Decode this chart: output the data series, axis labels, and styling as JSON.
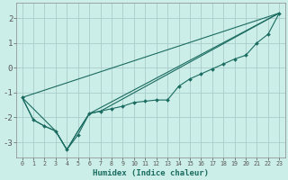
{
  "background_color": "#cceee8",
  "grid_color": "#aacccc",
  "line_color": "#1a6b60",
  "xlabel": "Humidex (Indice chaleur)",
  "xlim": [
    -0.5,
    23.5
  ],
  "ylim": [
    -3.6,
    2.6
  ],
  "yticks": [
    -3,
    -2,
    -1,
    0,
    1,
    2
  ],
  "xticks": [
    0,
    1,
    2,
    3,
    4,
    5,
    6,
    7,
    8,
    9,
    10,
    11,
    12,
    13,
    14,
    15,
    16,
    17,
    18,
    19,
    20,
    21,
    22,
    23
  ],
  "series_main": [
    [
      0,
      -1.2
    ],
    [
      1,
      -2.1
    ],
    [
      2,
      -2.35
    ],
    [
      3,
      -2.55
    ],
    [
      4,
      -3.3
    ],
    [
      5,
      -2.7
    ],
    [
      6,
      -1.85
    ],
    [
      7,
      -1.75
    ],
    [
      8,
      -1.65
    ],
    [
      9,
      -1.55
    ],
    [
      10,
      -1.4
    ],
    [
      11,
      -1.35
    ],
    [
      12,
      -1.3
    ],
    [
      13,
      -1.3
    ],
    [
      14,
      -0.75
    ],
    [
      15,
      -0.45
    ],
    [
      16,
      -0.25
    ],
    [
      17,
      -0.05
    ],
    [
      18,
      0.15
    ],
    [
      19,
      0.35
    ],
    [
      20,
      0.5
    ],
    [
      21,
      1.0
    ],
    [
      22,
      1.35
    ],
    [
      23,
      2.2
    ]
  ],
  "series_line2": [
    [
      0,
      -1.2
    ],
    [
      1,
      -2.1
    ],
    [
      2,
      -2.35
    ],
    [
      3,
      -2.55
    ],
    [
      4,
      -3.3
    ],
    [
      5,
      -2.55
    ],
    [
      6,
      -1.85
    ],
    [
      23,
      2.2
    ]
  ],
  "series_line3": [
    [
      0,
      -1.2
    ],
    [
      3,
      -2.55
    ],
    [
      4,
      -3.3
    ],
    [
      5,
      -2.55
    ],
    [
      6,
      -1.85
    ],
    [
      7,
      -1.75
    ],
    [
      23,
      2.2
    ]
  ],
  "series_line4": [
    [
      0,
      -1.2
    ],
    [
      23,
      2.2
    ]
  ]
}
